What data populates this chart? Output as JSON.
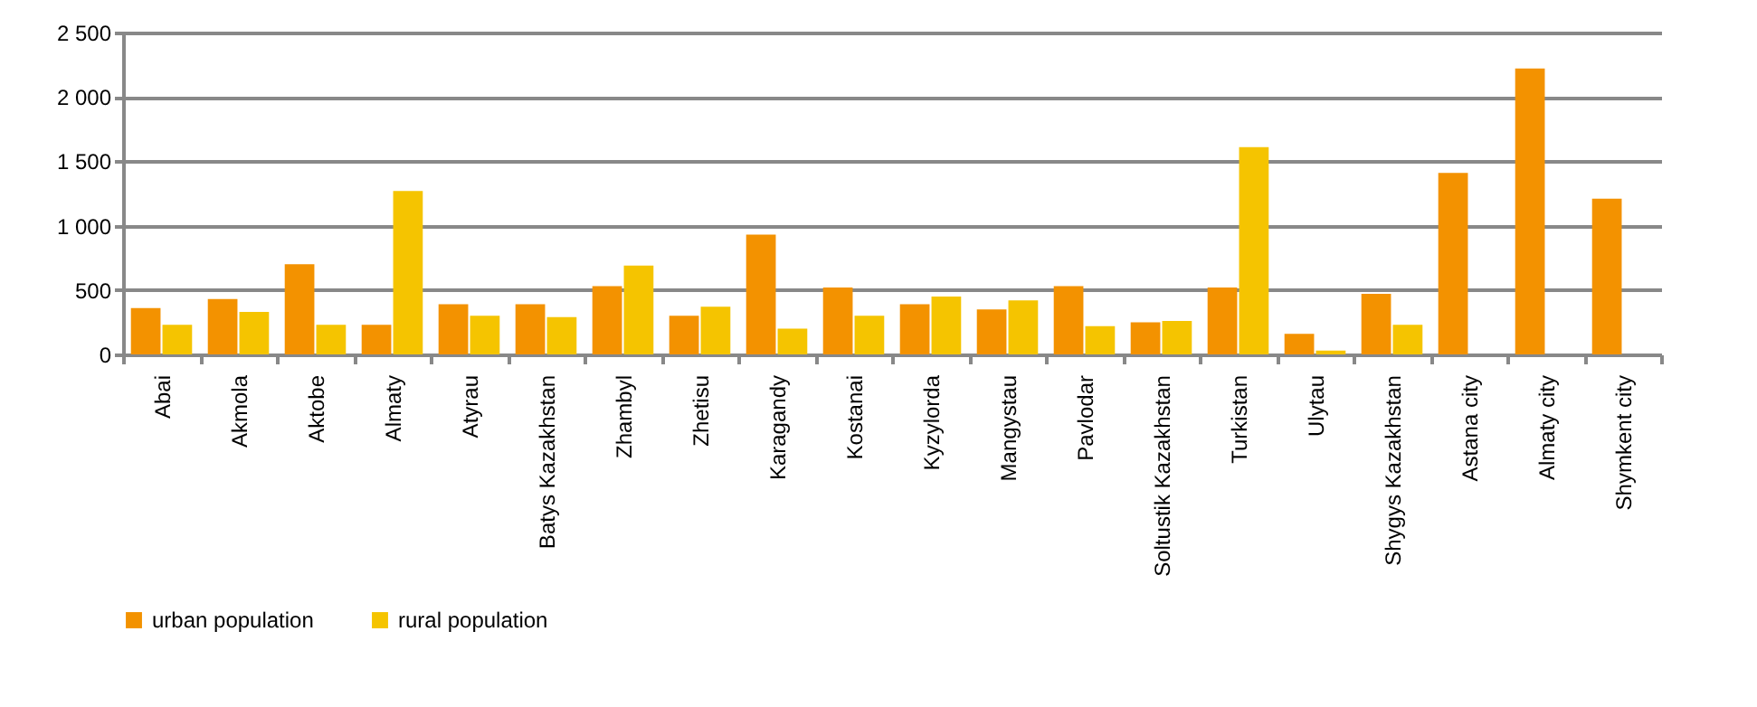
{
  "chart_data": {
    "type": "bar",
    "categories": [
      "Abai",
      "Akmola",
      "Aktobe",
      "Almaty",
      "Atyrau",
      "Batys Kazakhstan",
      "Zhambyl",
      "Zhetisu",
      "Karagandy",
      "Kostanai",
      "Kyzylorda",
      "Mangystau",
      "Pavlodar",
      "Soltustik Kazakhstan",
      "Turkistan",
      "Ulytau",
      "Shygys Kazakhstan",
      "Astana city",
      "Almaty city",
      "Shymkent city"
    ],
    "series": [
      {
        "name": "urban population",
        "color": "#f39200",
        "values": [
          360,
          430,
          700,
          230,
          390,
          390,
          530,
          300,
          930,
          520,
          390,
          350,
          530,
          250,
          520,
          160,
          470,
          1410,
          2220,
          1210
        ]
      },
      {
        "name": "rural population",
        "color": "#f5c400",
        "values": [
          230,
          330,
          230,
          1270,
          300,
          290,
          690,
          370,
          200,
          300,
          450,
          420,
          220,
          260,
          1610,
          30,
          230,
          null,
          null,
          null
        ]
      }
    ],
    "ylim": [
      0,
      2500
    ],
    "yticks": [
      0,
      500,
      {
        "value": 1000,
        "label": "1 000"
      },
      {
        "value": 1500,
        "label": "1 500"
      },
      {
        "value": 2000,
        "label": "2 000"
      },
      {
        "value": 2500,
        "label": "2 500"
      }
    ],
    "grid": "y",
    "legend": "bottom"
  }
}
